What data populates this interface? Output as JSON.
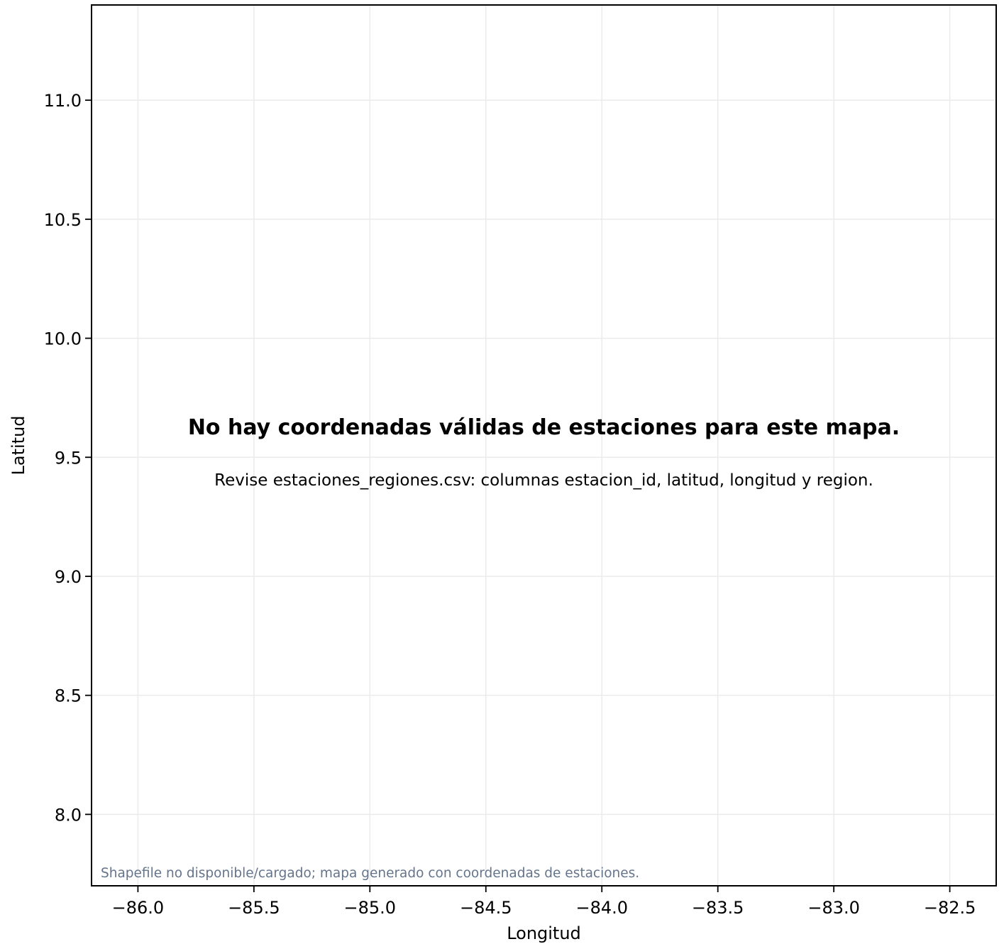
{
  "chart_data": {
    "type": "scatter",
    "title": "",
    "xlabel": "Longitud",
    "ylabel": "Latitud",
    "xlim": [
      -86.2,
      -82.3
    ],
    "ylim": [
      7.7,
      11.4
    ],
    "x_ticks": [
      -86.0,
      -85.5,
      -85.0,
      -84.5,
      -84.0,
      -83.5,
      -83.0,
      -82.5
    ],
    "y_ticks": [
      8.0,
      8.5,
      9.0,
      9.5,
      10.0,
      10.5,
      11.0
    ],
    "x_tick_labels": [
      "−86.0",
      "−85.5",
      "−85.0",
      "−84.5",
      "−84.0",
      "−83.5",
      "−83.0",
      "−82.5"
    ],
    "y_tick_labels": [
      "8.0",
      "8.5",
      "9.0",
      "9.5",
      "10.0",
      "10.5",
      "11.0"
    ],
    "grid": true,
    "series": [],
    "message": "No hay coordenadas válidas de estaciones para este mapa.",
    "hint": "Revise estaciones_regiones.csv: columnas estacion_id, latitud, longitud y region.",
    "footnote": "Shapefile no disponible/cargado; mapa generado con coordenadas de estaciones.",
    "colors": {
      "axis": "#000000",
      "grid": "#ebebeb",
      "footnote": "#64748b"
    }
  }
}
